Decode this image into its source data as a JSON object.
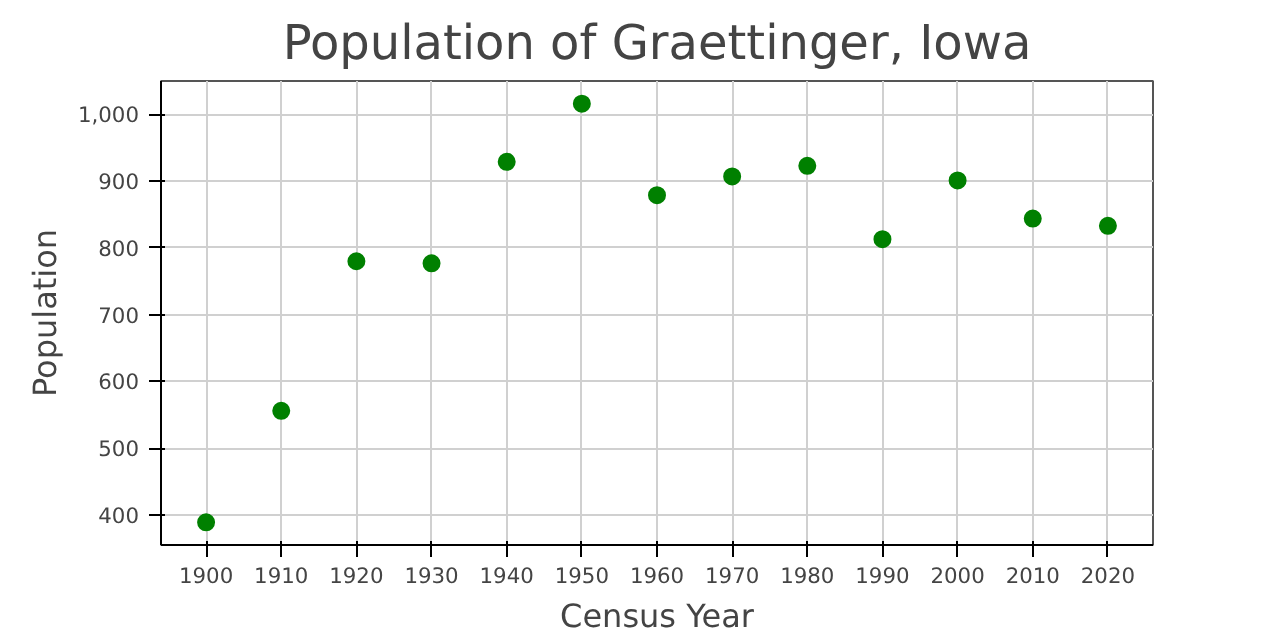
{
  "chart_data": {
    "type": "scatter",
    "title": "Population of Graettinger, Iowa",
    "xlabel": "Census Year",
    "ylabel": "Population",
    "x": [
      1900,
      1910,
      1920,
      1930,
      1940,
      1950,
      1960,
      1970,
      1980,
      1990,
      2000,
      2010,
      2020
    ],
    "series": [
      {
        "color": "#008000",
        "values": [
          389,
          556,
          780,
          777,
          929,
          1016,
          879,
          907,
          923,
          813,
          901,
          844,
          833
        ]
      }
    ],
    "xlim": [
      1894,
      2026
    ],
    "ylim": [
      355,
      1050
    ],
    "xticks": [
      1900,
      1910,
      1920,
      1930,
      1940,
      1950,
      1960,
      1970,
      1980,
      1990,
      2000,
      2010,
      2020
    ],
    "yticks": [
      400,
      500,
      600,
      700,
      800,
      900,
      {
        "value": 1000,
        "label": "1,000"
      }
    ],
    "grid": true,
    "marker": "circle"
  }
}
